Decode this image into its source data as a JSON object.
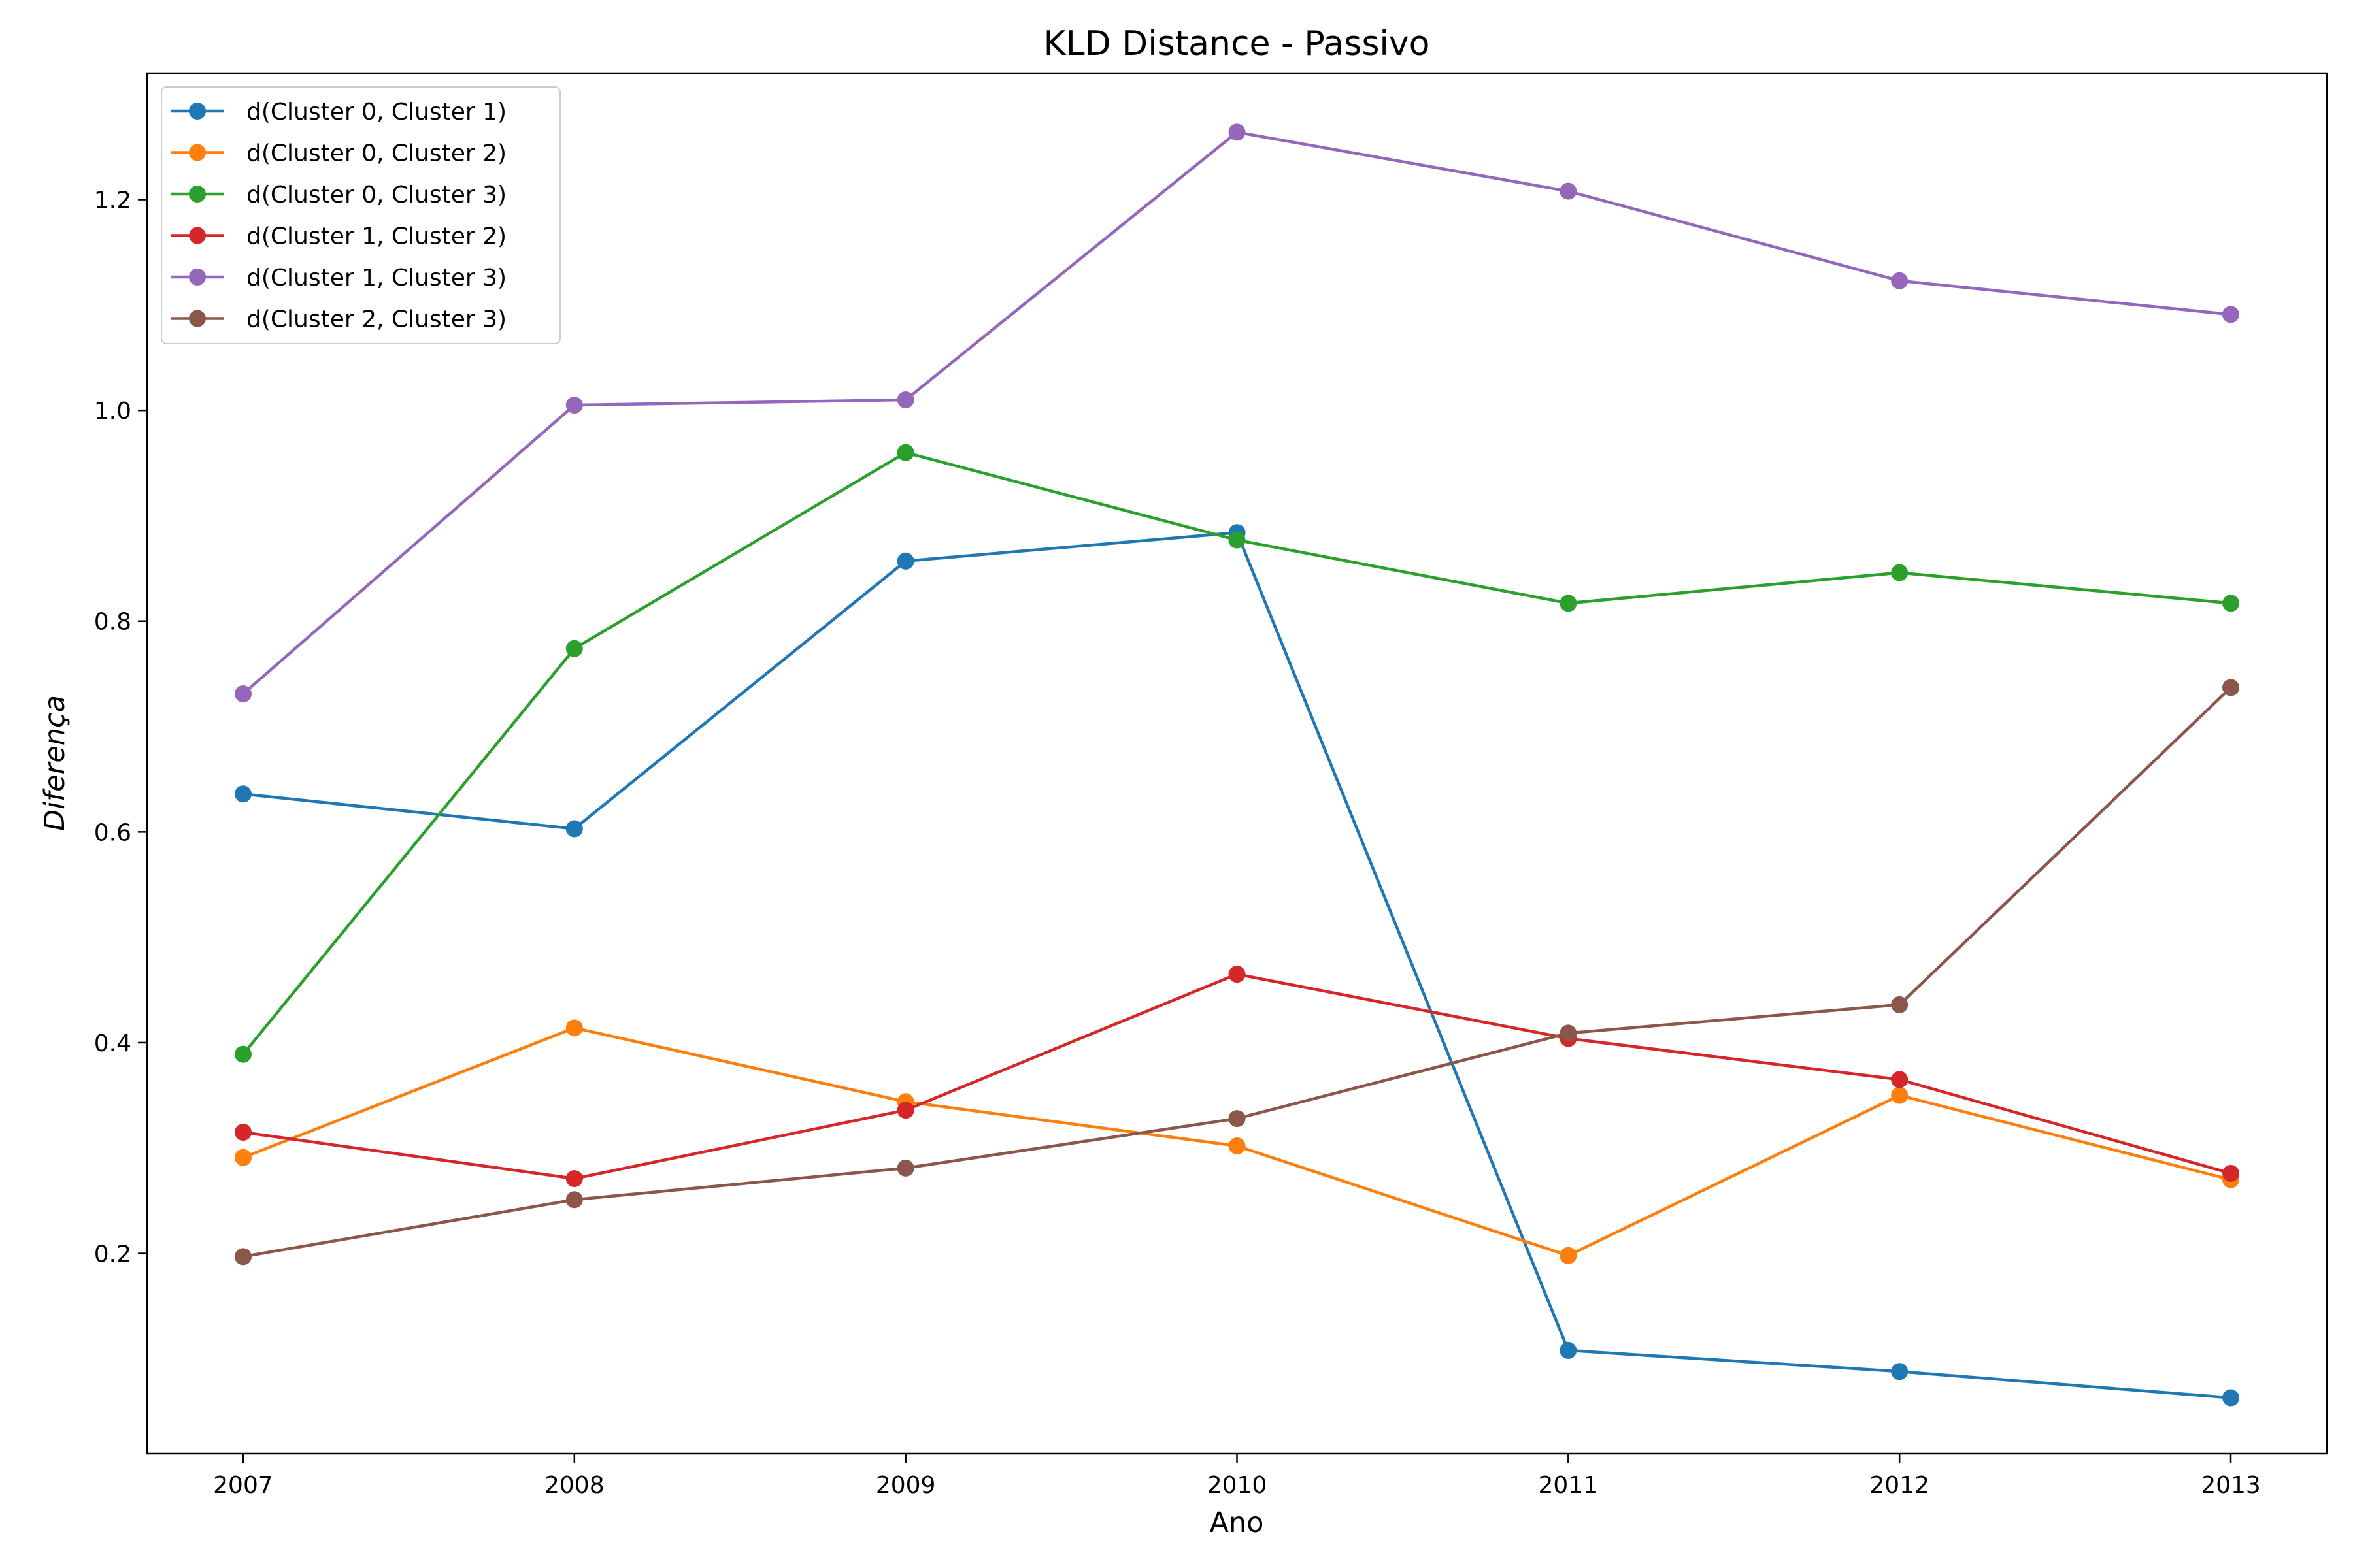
{
  "chart_data": {
    "type": "line",
    "title": "KLD Distance - Passivo",
    "xlabel": "Ano",
    "ylabel": "Diferença",
    "x": [
      2007,
      2008,
      2009,
      2010,
      2011,
      2012,
      2013
    ],
    "xlim": [
      2006.71,
      2013.29
    ],
    "ylim": [
      0.01,
      1.32
    ],
    "yticks": [
      0.2,
      0.4,
      0.6,
      0.8,
      1.0,
      1.2
    ],
    "ytick_labels": [
      "0.2",
      "0.4",
      "0.6",
      "0.8",
      "1.0",
      "1.2"
    ],
    "xtick_labels": [
      "2007",
      "2008",
      "2009",
      "2010",
      "2011",
      "2012",
      "2013"
    ],
    "grid": false,
    "legend_position": "top-left",
    "series": [
      {
        "name": "d(Cluster 0, Cluster 1)",
        "color": "#1f77b4",
        "values": [
          0.636,
          0.603,
          0.857,
          0.884,
          0.108,
          0.088,
          0.063
        ]
      },
      {
        "name": "d(Cluster 0, Cluster 2)",
        "color": "#ff7f0e",
        "values": [
          0.291,
          0.414,
          0.344,
          0.302,
          0.198,
          0.35,
          0.27
        ]
      },
      {
        "name": "d(Cluster 0, Cluster 3)",
        "color": "#2ca02c",
        "values": [
          0.389,
          0.774,
          0.96,
          0.877,
          0.817,
          0.846,
          0.817
        ]
      },
      {
        "name": "d(Cluster 1, Cluster 2)",
        "color": "#d62728",
        "values": [
          0.315,
          0.271,
          0.336,
          0.465,
          0.404,
          0.365,
          0.276
        ]
      },
      {
        "name": "d(Cluster 1, Cluster 3)",
        "color": "#9467bd",
        "values": [
          0.731,
          1.005,
          1.01,
          1.264,
          1.208,
          1.123,
          1.091
        ]
      },
      {
        "name": "d(Cluster 2, Cluster 3)",
        "color": "#8c564b",
        "values": [
          0.197,
          0.251,
          0.281,
          0.328,
          0.409,
          0.436,
          0.737
        ]
      }
    ]
  }
}
